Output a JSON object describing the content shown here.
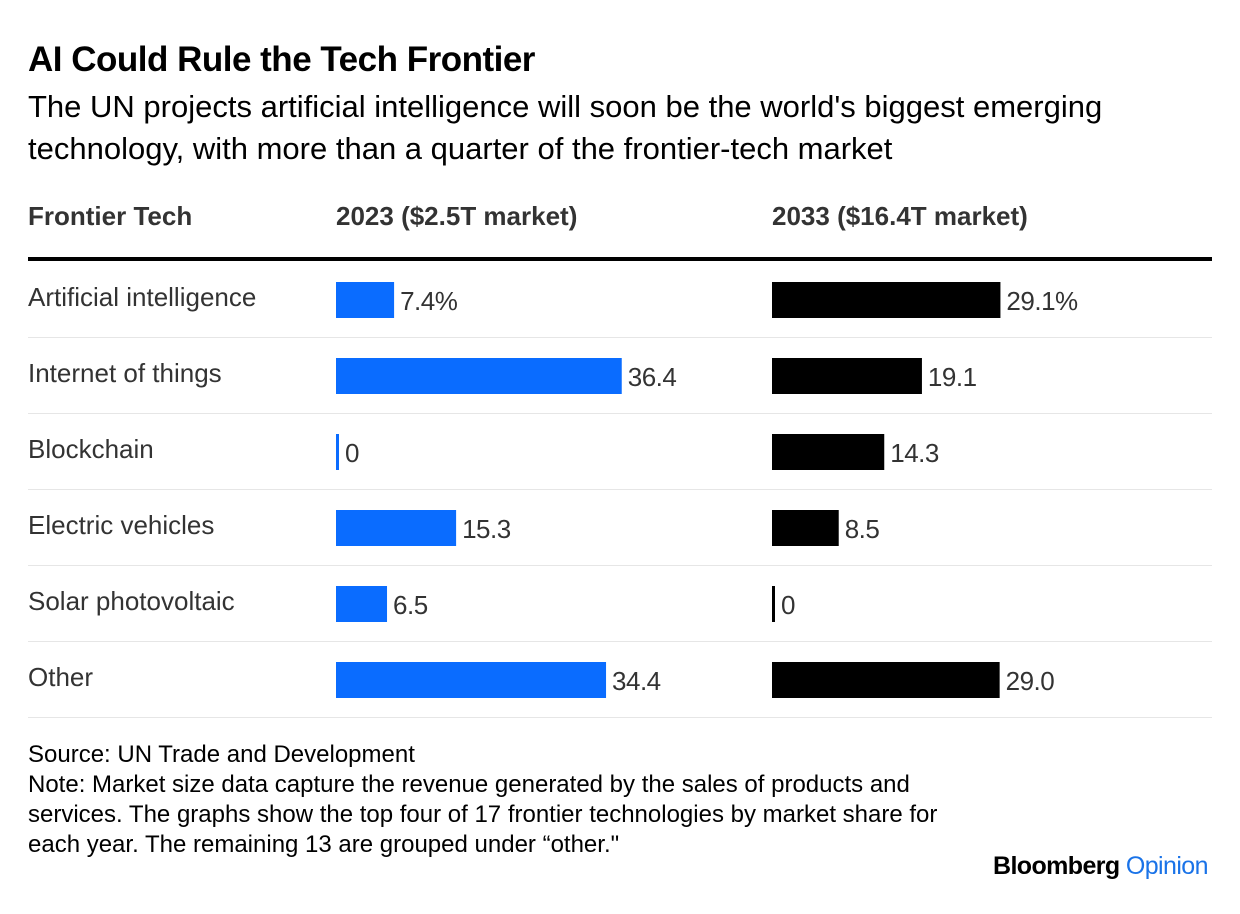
{
  "title": "AI Could Rule the Tech Frontier",
  "subtitle": "The UN projects artificial intelligence will soon be the world's biggest emerging technology, with more than a quarter of the frontier-tech market",
  "source": "Source: UN Trade and Development",
  "note": "Note: Market size data capture the revenue generated by the sales of products and services. The graphs show the top four of 17 frontier technologies by market share for each year. The remaining 13 are grouped under “other.\"",
  "brand": {
    "name": "Bloomberg",
    "section": "Opinion"
  },
  "colors": {
    "bar_2023": "#0a6cff",
    "bar_2033": "#000000",
    "row_rule": "#e6e6e6",
    "brand_accent": "#1a73e8"
  },
  "chart_data": {
    "type": "bar",
    "unit": "%",
    "columns": [
      "Frontier Tech",
      "2023 ($2.5T market)",
      "2033 ($16.4T market)"
    ],
    "categories": [
      "Artificial intelligence",
      "Internet of things",
      "Blockchain",
      "Electric vehicles",
      "Solar photovoltaic",
      "Other"
    ],
    "series": [
      {
        "name": "2023 ($2.5T market)",
        "values": [
          7.4,
          36.4,
          0,
          15.3,
          6.5,
          34.4
        ],
        "labels": [
          "7.4%",
          "36.4",
          "0",
          "15.3",
          "6.5",
          "34.4"
        ]
      },
      {
        "name": "2033 ($16.4T market)",
        "values": [
          29.1,
          19.1,
          14.3,
          8.5,
          0,
          29.0
        ],
        "labels": [
          "29.1%",
          "19.1",
          "14.3",
          "8.5",
          "0",
          "29.0"
        ]
      }
    ]
  }
}
